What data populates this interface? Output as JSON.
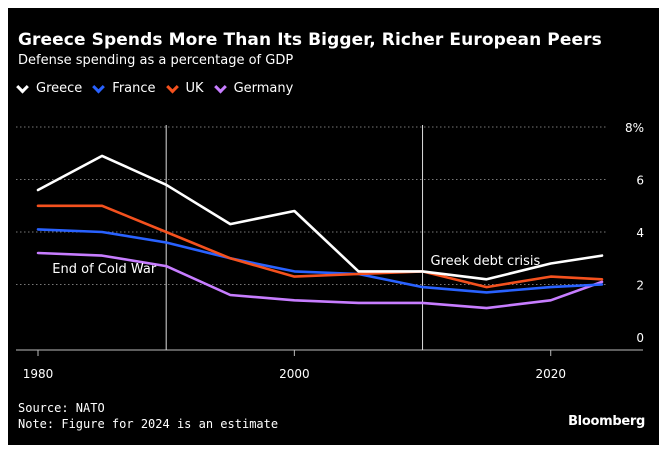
{
  "chart_data": {
    "type": "line",
    "title": "Greece Spends More Than Its Bigger, Richer European Peers",
    "subtitle": "Defense spending as a percentage of GDP",
    "xlabel": "",
    "ylabel": "",
    "xlim": [
      1980,
      2024
    ],
    "ylim": [
      0,
      8
    ],
    "x_ticks": [
      1980,
      2000,
      2020
    ],
    "y_ticks": [
      {
        "value": 0,
        "label": "0"
      },
      {
        "value": 2,
        "label": "2"
      },
      {
        "value": 4,
        "label": "4"
      },
      {
        "value": 6,
        "label": "6"
      },
      {
        "value": 8,
        "label": "8%"
      }
    ],
    "grid": "horizontal dotted",
    "series": [
      {
        "name": "Greece",
        "color": "#ffffff",
        "x": [
          1980,
          1985,
          1990,
          1995,
          2000,
          2005,
          2010,
          2015,
          2020,
          2024
        ],
        "values": [
          5.6,
          6.9,
          5.8,
          4.3,
          4.8,
          2.5,
          2.5,
          2.2,
          2.8,
          3.1
        ]
      },
      {
        "name": "France",
        "color": "#2962ff",
        "x": [
          1980,
          1985,
          1990,
          1995,
          2000,
          2005,
          2010,
          2015,
          2020,
          2024
        ],
        "values": [
          4.1,
          4.0,
          3.6,
          3.0,
          2.5,
          2.4,
          1.9,
          1.7,
          1.9,
          2.0
        ]
      },
      {
        "name": "UK",
        "color": "#f4511e",
        "x": [
          1980,
          1985,
          1990,
          1995,
          2000,
          2005,
          2010,
          2015,
          2020,
          2024
        ],
        "values": [
          5.0,
          5.0,
          4.0,
          3.0,
          2.3,
          2.4,
          2.5,
          1.9,
          2.3,
          2.2
        ]
      },
      {
        "name": "Germany",
        "color": "#c77dff",
        "x": [
          1980,
          1985,
          1990,
          1995,
          2000,
          2005,
          2010,
          2015,
          2020,
          2024
        ],
        "values": [
          3.2,
          3.1,
          2.7,
          1.6,
          1.4,
          1.3,
          1.3,
          1.1,
          1.4,
          2.1
        ]
      }
    ],
    "annotations": [
      {
        "x": 1990,
        "label": "End of Cold War"
      },
      {
        "x": 2010,
        "label": "Greek debt crisis"
      }
    ]
  },
  "footer": {
    "source": "Source: NATO",
    "note": "Note: Figure for 2024 is an estimate",
    "brand": "Bloomberg"
  }
}
